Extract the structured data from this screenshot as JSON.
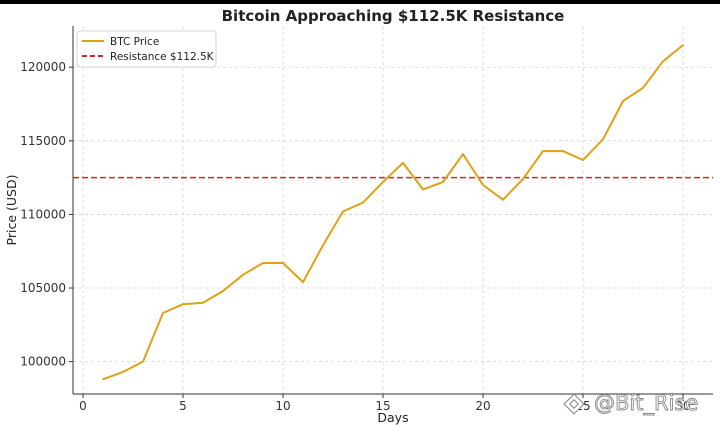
{
  "chart_data": {
    "type": "line",
    "title": "Bitcoin Approaching $112.5K Resistance",
    "xlabel": "Days",
    "ylabel": "Price (USD)",
    "xlim": [
      -0.5,
      31.5
    ],
    "ylim": [
      97800,
      122800
    ],
    "x_ticks": [
      0,
      5,
      10,
      15,
      20,
      25,
      30
    ],
    "y_ticks": [
      100000,
      105000,
      110000,
      115000,
      120000
    ],
    "grid": true,
    "legend_position": "top-left",
    "series": [
      {
        "name": "BTC Price",
        "color": "#e1a116",
        "x": [
          1,
          2,
          3,
          4,
          5,
          6,
          7,
          8,
          9,
          10,
          11,
          12,
          13,
          14,
          15,
          16,
          17,
          18,
          19,
          20,
          21,
          22,
          23,
          24,
          25,
          26,
          27,
          28,
          29,
          30
        ],
        "values": [
          98800,
          99300,
          100000,
          103300,
          103900,
          104000,
          104800,
          105900,
          106700,
          106700,
          105400,
          107900,
          110200,
          110800,
          112200,
          113500,
          111700,
          112200,
          114100,
          112000,
          111000,
          112400,
          114300,
          114300,
          113700,
          115100,
          117700,
          118600,
          120400,
          121500
        ]
      }
    ],
    "reference_lines": [
      {
        "name": "Resistance $112.5K",
        "orientation": "horizontal",
        "value": 112500,
        "color": "#cc2a2a",
        "style": "dashed"
      }
    ]
  },
  "watermark": {
    "text": "@Bit_Rise",
    "icon": "binance-logo-icon"
  }
}
